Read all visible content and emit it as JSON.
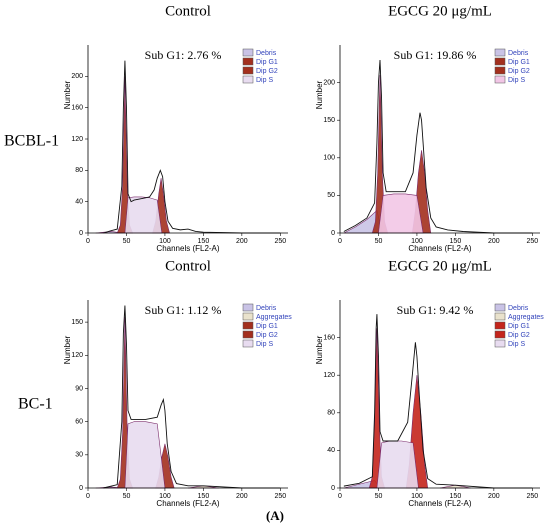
{
  "row_labels": [
    "BCBL-1",
    "BC-1"
  ],
  "caption": "(A)",
  "chart_data": [
    {
      "type": "histogram",
      "title": "Control",
      "annotation": "Sub G1: 2.76 %",
      "x_label": "Channels (FL2-A)",
      "y_label": "Number",
      "xlim": [
        0,
        260
      ],
      "xticks": [
        0,
        50,
        100,
        150,
        200,
        250
      ],
      "ylim": [
        0,
        240
      ],
      "yticks": [
        0,
        40,
        80,
        120,
        160,
        200
      ],
      "series": [
        {
          "name": "Debris",
          "color": "#c9c3e6",
          "x": [
            10,
            30,
            45
          ],
          "values": [
            0,
            2,
            0
          ]
        },
        {
          "name": "Dip G1",
          "color": "#a3301e",
          "x": [
            38,
            42,
            45,
            47,
            48,
            49,
            51,
            54,
            58
          ],
          "values": [
            0,
            10,
            60,
            150,
            200,
            150,
            60,
            10,
            0
          ]
        },
        {
          "name": "Dip G2",
          "color": "#a3301e",
          "x": [
            84,
            88,
            92,
            95,
            98,
            102,
            106
          ],
          "values": [
            0,
            15,
            50,
            70,
            50,
            15,
            0
          ]
        },
        {
          "name": "Dip S",
          "color": "#e8dcf0",
          "x": [
            48,
            52,
            60,
            70,
            80,
            90,
            96
          ],
          "values": [
            0,
            45,
            46,
            46,
            45,
            42,
            0
          ]
        }
      ],
      "outline": {
        "x": [
          20,
          30,
          38,
          44,
          46,
          48,
          50,
          52,
          56,
          60,
          70,
          80,
          86,
          90,
          94,
          97,
          100,
          104,
          110,
          120,
          130,
          140,
          150,
          200,
          250
        ],
        "values": [
          0,
          3,
          5,
          60,
          160,
          220,
          160,
          50,
          40,
          42,
          44,
          46,
          55,
          70,
          80,
          72,
          40,
          15,
          6,
          4,
          5,
          2,
          1,
          0,
          0
        ]
      }
    },
    {
      "type": "histogram",
      "title": "EGCG 20 μg/mL",
      "annotation": "Sub G1: 19.86 %",
      "x_label": "Channels (FL2-A)",
      "y_label": "Number",
      "xlim": [
        0,
        260
      ],
      "xticks": [
        0,
        50,
        100,
        150,
        200,
        250
      ],
      "ylim": [
        0,
        250
      ],
      "yticks": [
        0,
        50,
        100,
        150,
        200
      ],
      "series": [
        {
          "name": "Debris",
          "color": "#c9c3e6",
          "x": [
            5,
            20,
            35,
            48,
            55
          ],
          "values": [
            0,
            8,
            18,
            30,
            0
          ]
        },
        {
          "name": "Dip G1",
          "color": "#a3301e",
          "x": [
            42,
            46,
            49,
            51,
            52,
            53,
            55,
            58,
            62
          ],
          "values": [
            0,
            15,
            80,
            170,
            210,
            170,
            80,
            15,
            0
          ]
        },
        {
          "name": "Dip G2",
          "color": "#a3301e",
          "x": [
            94,
            98,
            102,
            106,
            110,
            114,
            118
          ],
          "values": [
            0,
            30,
            80,
            110,
            80,
            30,
            0
          ]
        },
        {
          "name": "Dip S",
          "color": "#f2c6e6",
          "x": [
            50,
            56,
            70,
            85,
            100,
            108
          ],
          "values": [
            0,
            50,
            52,
            52,
            50,
            0
          ]
        }
      ],
      "outline": {
        "x": [
          5,
          20,
          35,
          45,
          48,
          50,
          52,
          54,
          56,
          60,
          70,
          85,
          95,
          100,
          104,
          106,
          108,
          112,
          118,
          125,
          140,
          160,
          200,
          250
        ],
        "values": [
          2,
          10,
          20,
          40,
          120,
          200,
          230,
          180,
          80,
          55,
          55,
          55,
          80,
          130,
          160,
          150,
          120,
          60,
          20,
          8,
          4,
          2,
          0,
          0
        ]
      }
    },
    {
      "type": "histogram",
      "title": "Control",
      "annotation": "Sub G1: 1.12 %",
      "x_label": "Channels (FL2-A)",
      "y_label": "Number",
      "xlim": [
        0,
        260
      ],
      "xticks": [
        0,
        50,
        100,
        150,
        200,
        250
      ],
      "ylim": [
        0,
        170
      ],
      "yticks": [
        0,
        30,
        60,
        90,
        120,
        150
      ],
      "series": [
        {
          "name": "Debris",
          "color": "#c9c3e6",
          "x": [
            10,
            30,
            45
          ],
          "values": [
            0,
            1,
            0
          ]
        },
        {
          "name": "Aggregates",
          "color": "#e9e2cc",
          "x": [
            130,
            150,
            170
          ],
          "values": [
            0,
            2,
            0
          ]
        },
        {
          "name": "Dip G1",
          "color": "#a3301e",
          "x": [
            38,
            42,
            45,
            47,
            48,
            49,
            51,
            54,
            58
          ],
          "values": [
            0,
            8,
            50,
            120,
            155,
            120,
            50,
            8,
            0
          ]
        },
        {
          "name": "Dip G2",
          "color": "#a3301e",
          "x": [
            88,
            92,
            96,
            100,
            104,
            108,
            112
          ],
          "values": [
            0,
            10,
            28,
            40,
            28,
            10,
            0
          ]
        },
        {
          "name": "Dip S",
          "color": "#e8dcf0",
          "x": [
            48,
            52,
            60,
            75,
            90,
            100
          ],
          "values": [
            0,
            58,
            60,
            60,
            58,
            0
          ]
        }
      ],
      "outline": {
        "x": [
          20,
          38,
          44,
          46,
          48,
          50,
          52,
          56,
          60,
          75,
          90,
          95,
          98,
          100,
          103,
          108,
          115,
          130,
          150,
          200,
          250
        ],
        "values": [
          0,
          3,
          60,
          140,
          165,
          130,
          70,
          62,
          62,
          62,
          64,
          75,
          80,
          70,
          40,
          15,
          4,
          2,
          2,
          0,
          0
        ]
      }
    },
    {
      "type": "histogram",
      "title": "EGCG 20 μg/mL",
      "annotation": "Sub G1: 9.42 %",
      "x_label": "Channels (FL2-A)",
      "y_label": "Number",
      "xlim": [
        0,
        260
      ],
      "xticks": [
        0,
        50,
        100,
        150,
        200,
        250
      ],
      "ylim": [
        0,
        200
      ],
      "yticks": [
        0,
        40,
        80,
        120,
        160
      ],
      "series": [
        {
          "name": "Debris",
          "color": "#c9c3e6",
          "x": [
            5,
            25,
            45,
            52
          ],
          "values": [
            0,
            4,
            8,
            0
          ]
        },
        {
          "name": "Aggregates",
          "color": "#e9e2cc",
          "x": [
            130,
            150,
            170
          ],
          "values": [
            0,
            3,
            0
          ]
        },
        {
          "name": "Dip G1",
          "color": "#c4251c",
          "x": [
            38,
            42,
            45,
            47,
            48,
            49,
            51,
            54,
            58
          ],
          "values": [
            0,
            12,
            70,
            140,
            170,
            140,
            70,
            12,
            0
          ]
        },
        {
          "name": "Dip G2",
          "color": "#c4251c",
          "x": [
            86,
            90,
            95,
            100,
            105,
            110,
            114
          ],
          "values": [
            0,
            25,
            80,
            120,
            80,
            25,
            0
          ]
        },
        {
          "name": "Dip S",
          "color": "#e8dcf0",
          "x": [
            48,
            54,
            65,
            80,
            95,
            102
          ],
          "values": [
            0,
            48,
            50,
            50,
            48,
            0
          ]
        }
      ],
      "outline": {
        "x": [
          5,
          25,
          42,
          45,
          47,
          48,
          50,
          52,
          56,
          62,
          75,
          88,
          94,
          98,
          100,
          103,
          108,
          114,
          125,
          150,
          200,
          250
        ],
        "values": [
          2,
          5,
          12,
          80,
          170,
          185,
          140,
          60,
          50,
          50,
          50,
          70,
          120,
          155,
          140,
          100,
          40,
          10,
          4,
          3,
          0,
          0
        ]
      }
    }
  ]
}
